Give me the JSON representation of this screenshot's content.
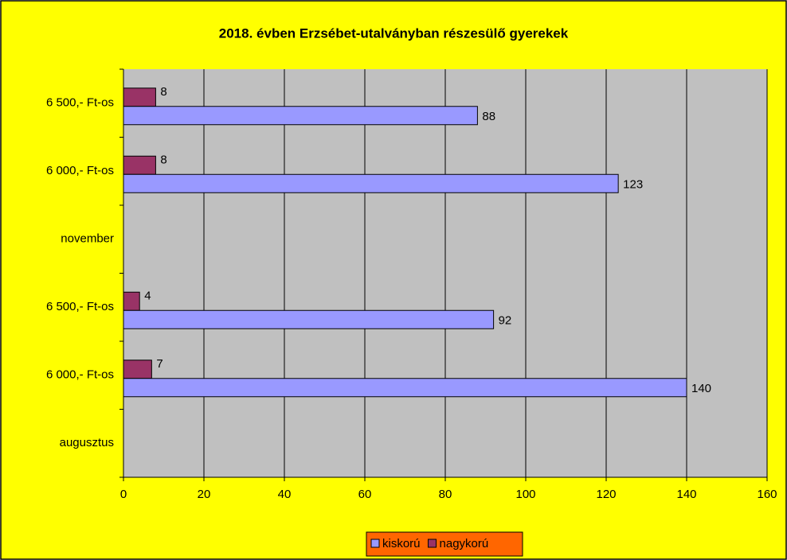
{
  "chart_data": {
    "type": "bar",
    "orientation": "horizontal",
    "title": "2018. évben Erzsébet-utalványban részesülő gyerekek",
    "categories": [
      "6 500,- Ft-os",
      "6 000,- Ft-os",
      "november",
      "6 500,- Ft-os",
      "6 000,- Ft-os",
      "augusztus"
    ],
    "series": [
      {
        "name": "kiskorú",
        "color": "#9999ff",
        "values": [
          88,
          123,
          null,
          92,
          140,
          null
        ]
      },
      {
        "name": "nagykorú",
        "color": "#993366",
        "values": [
          8,
          8,
          null,
          4,
          7,
          null
        ]
      }
    ],
    "xlim": [
      0,
      160
    ],
    "xticks": [
      0,
      20,
      40,
      60,
      80,
      100,
      120,
      140,
      160
    ],
    "grid": true,
    "legend": "bottom"
  }
}
